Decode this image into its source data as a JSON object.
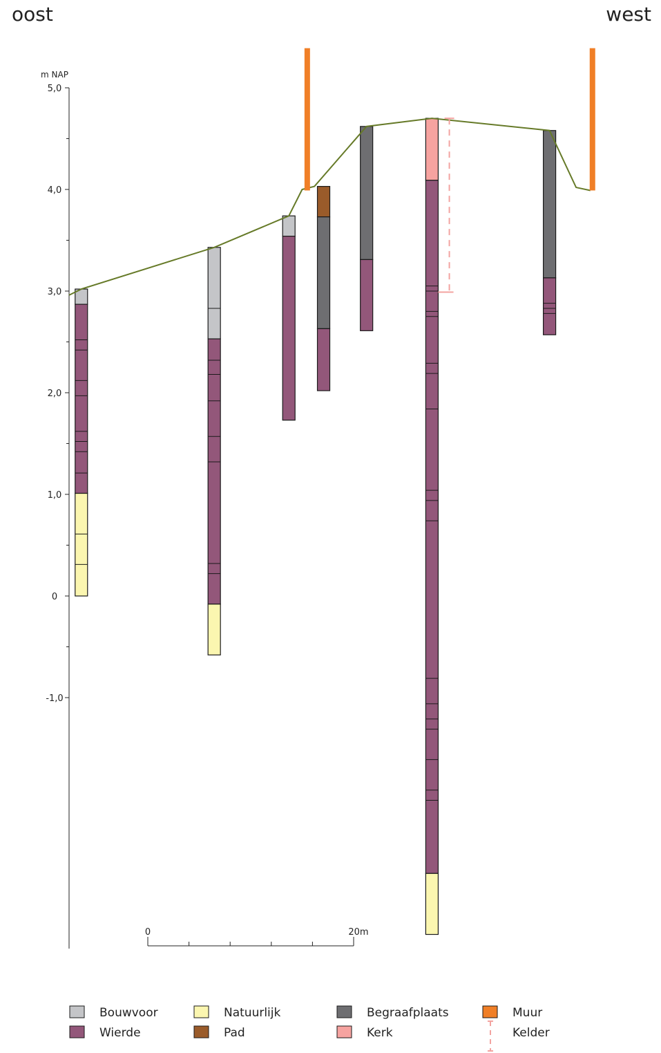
{
  "directions": {
    "left": "oost",
    "right": "west"
  },
  "axis": {
    "unit_label": "m NAP",
    "ticks": [
      {
        "value": 5,
        "label": "5,0"
      },
      {
        "value": 4,
        "label": "4,0"
      },
      {
        "value": 3,
        "label": "3,0"
      },
      {
        "value": 2,
        "label": "2,0"
      },
      {
        "value": 1,
        "label": "1,0"
      },
      {
        "value": 0,
        "label": "0"
      },
      {
        "value": -1,
        "label": "-1,0"
      }
    ],
    "minor_ticks": [
      4.5,
      3.5,
      2.5,
      1.5,
      0.5,
      -0.5
    ]
  },
  "scale_bar": {
    "start_label": "0",
    "end_label": "20m",
    "divisions": 5
  },
  "colors": {
    "bouwvoor": "#c4c5c8",
    "natuurlijk": "#fbf6b0",
    "begraafplaats": "#6e6e71",
    "muur": "#f07f27",
    "wierde": "#93577a",
    "pad": "#9a5b2a",
    "kerk": "#f6a3a0",
    "kelder": "#f3a3a0",
    "surface": "#667a28"
  },
  "surface": [
    [
      0,
      2.96
    ],
    [
      1.2,
      3.02
    ],
    [
      14.2,
      3.43
    ],
    [
      21.5,
      3.74
    ],
    [
      22.8,
      4.0
    ],
    [
      24,
      4.03
    ],
    [
      29.1,
      4.62
    ],
    [
      35.5,
      4.7
    ],
    [
      47,
      4.58
    ],
    [
      49.6,
      4.02
    ],
    [
      51,
      3.99
    ]
  ],
  "walls": [
    {
      "x": 23.3,
      "top": 5.39,
      "bottom": 3.99
    },
    {
      "x": 51.2,
      "top": 5.39,
      "bottom": 3.99
    }
  ],
  "kelder": {
    "x": 37.2,
    "top": 4.7,
    "bottom": 2.99,
    "x_end": 36.1
  },
  "borings": [
    {
      "x": 1.2,
      "layers": [
        {
          "top": 3.02,
          "bottom": 2.87,
          "type": "bouwvoor"
        },
        {
          "top": 2.87,
          "bottom": 1.01,
          "type": "wierde"
        },
        {
          "top": 1.01,
          "bottom": 0.0,
          "type": "natuurlijk"
        }
      ],
      "lines": [
        2.52,
        2.42,
        2.12,
        1.97,
        1.62,
        1.52,
        1.42,
        1.21,
        0.61,
        0.31
      ]
    },
    {
      "x": 14.2,
      "layers": [
        {
          "top": 3.43,
          "bottom": 2.53,
          "type": "bouwvoor"
        },
        {
          "top": 2.53,
          "bottom": -0.08,
          "type": "wierde"
        },
        {
          "top": -0.08,
          "bottom": -0.58,
          "type": "natuurlijk"
        }
      ],
      "lines": [
        2.83,
        2.32,
        2.18,
        1.92,
        1.57,
        1.32,
        0.32,
        0.22
      ]
    },
    {
      "x": 21.5,
      "layers": [
        {
          "top": 3.74,
          "bottom": 3.54,
          "type": "bouwvoor"
        },
        {
          "top": 3.54,
          "bottom": 1.73,
          "type": "wierde"
        }
      ],
      "lines": []
    },
    {
      "x": 24.9,
      "layers": [
        {
          "top": 4.03,
          "bottom": 3.73,
          "type": "pad"
        },
        {
          "top": 3.73,
          "bottom": 2.63,
          "type": "begraafplaats"
        },
        {
          "top": 2.63,
          "bottom": 2.02,
          "type": "wierde"
        }
      ],
      "lines": []
    },
    {
      "x": 29.1,
      "layers": [
        {
          "top": 4.62,
          "bottom": 3.31,
          "type": "begraafplaats"
        },
        {
          "top": 3.31,
          "bottom": 2.61,
          "type": "wierde"
        }
      ],
      "lines": []
    },
    {
      "x": 35.5,
      "layers": [
        {
          "top": 4.7,
          "bottom": 4.09,
          "type": "kerk"
        },
        {
          "top": 4.09,
          "bottom": -2.73,
          "type": "wierde"
        },
        {
          "top": -2.73,
          "bottom": -3.33,
          "type": "natuurlijk"
        }
      ],
      "lines": [
        3.05,
        3.0,
        2.8,
        2.75,
        2.29,
        2.19,
        1.84,
        1.04,
        0.94,
        0.74,
        -0.81,
        -1.06,
        -1.21,
        -1.31,
        -1.61,
        -1.91,
        -2.01
      ]
    },
    {
      "x": 47,
      "layers": [
        {
          "top": 4.58,
          "bottom": 3.13,
          "type": "begraafplaats"
        },
        {
          "top": 3.13,
          "bottom": 2.57,
          "type": "wierde"
        }
      ],
      "lines": [
        2.88,
        2.83,
        2.78
      ]
    }
  ],
  "legend": [
    {
      "key": "bouwvoor",
      "label": "Bouwvoor"
    },
    {
      "key": "wierde",
      "label": "Wierde"
    },
    {
      "key": "natuurlijk",
      "label": "Natuurlijk"
    },
    {
      "key": "pad",
      "label": "Pad"
    },
    {
      "key": "begraafplaats",
      "label": "Begraafplaats"
    },
    {
      "key": "kerk",
      "label": "Kerk"
    },
    {
      "key": "muur",
      "label": "Muur"
    },
    {
      "key": "kelder",
      "label": "Kelder"
    }
  ]
}
